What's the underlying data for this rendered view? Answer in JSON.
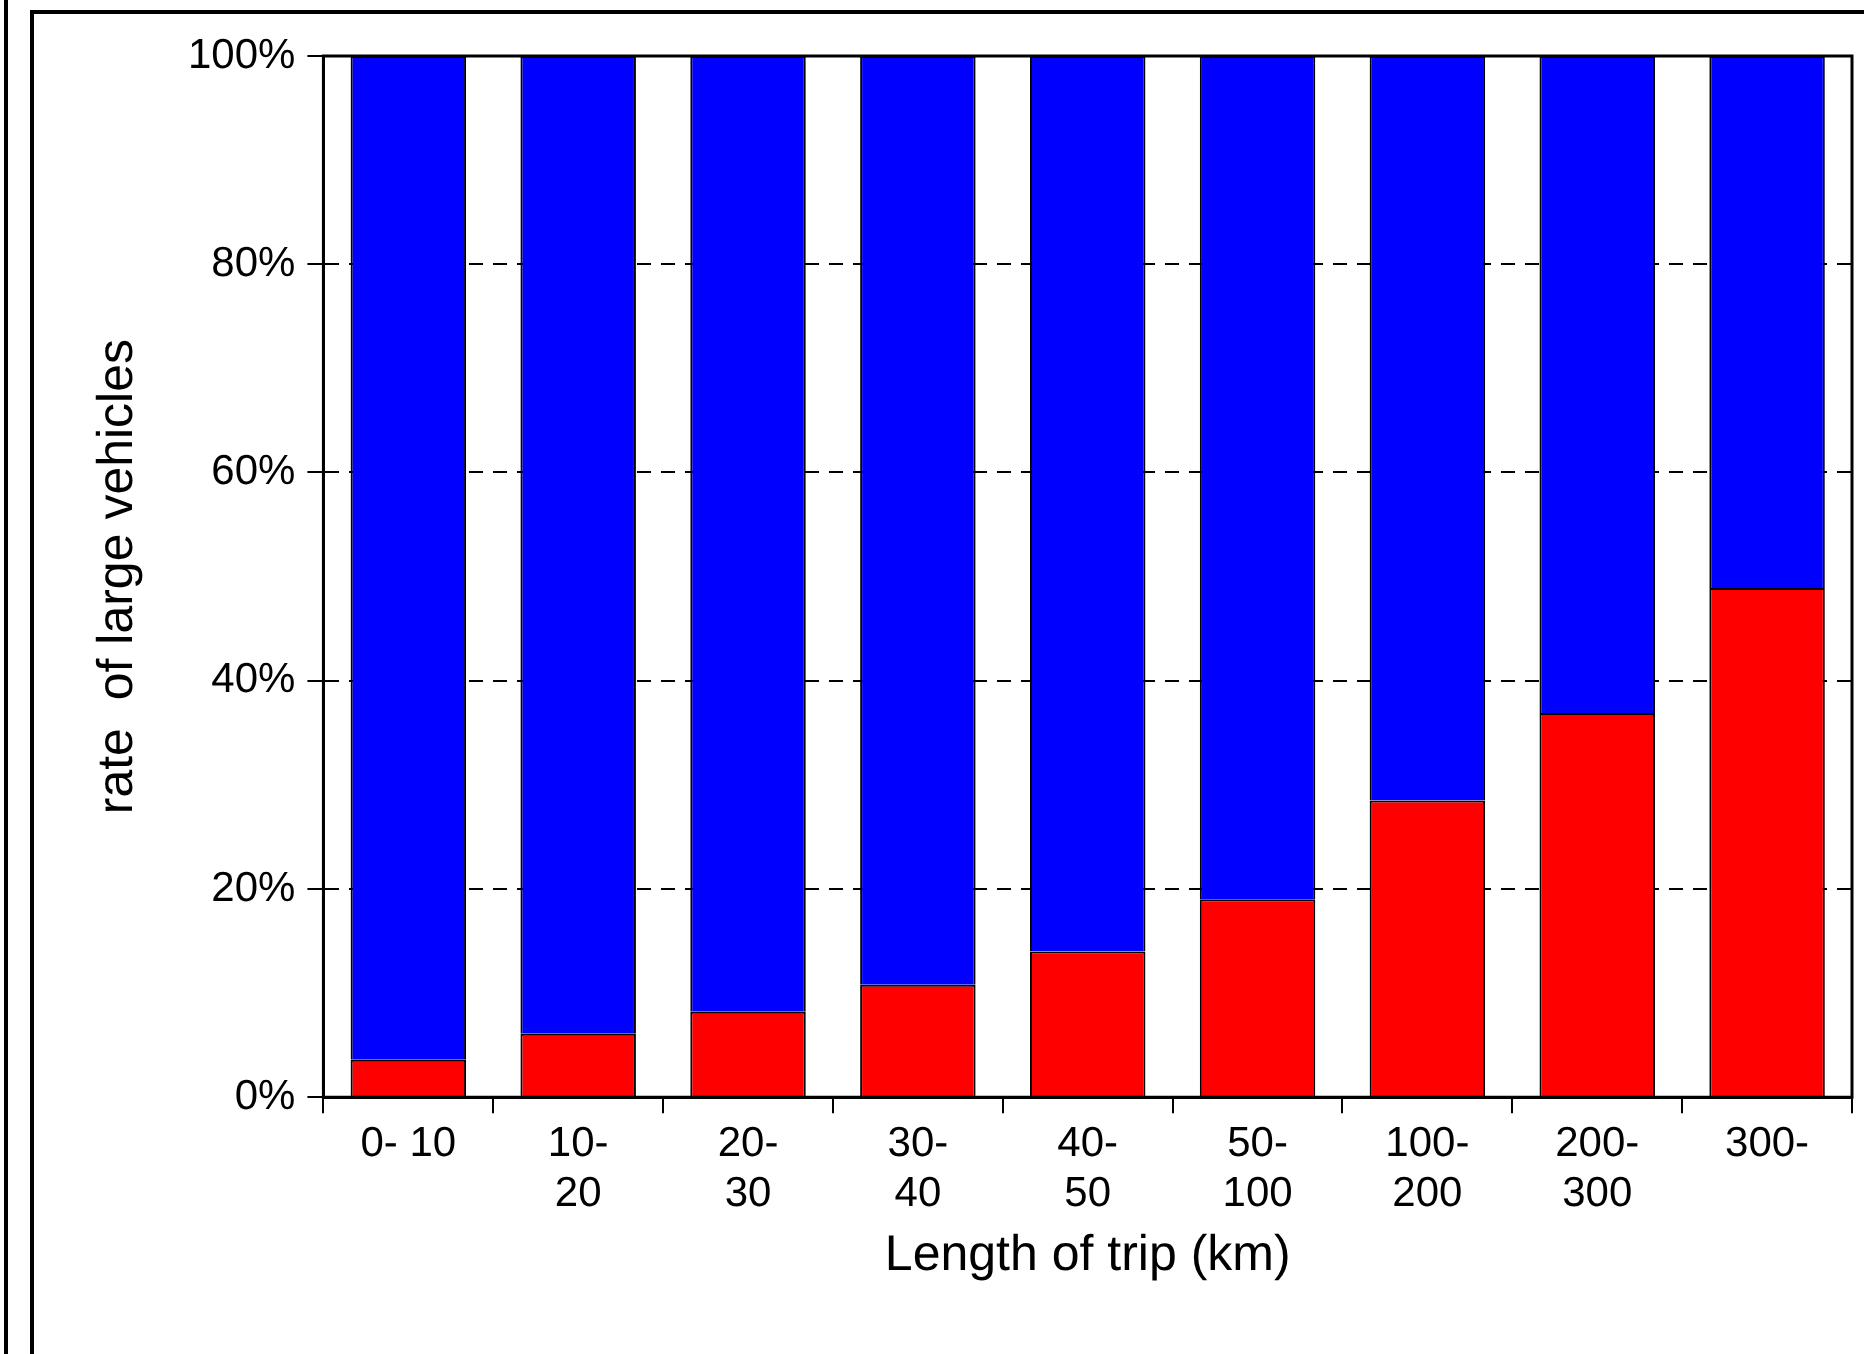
{
  "chart_data": {
    "type": "bar",
    "stacked": true,
    "xlabel": "Length of trip (km)",
    "ylabel": "rate  of large vehicles",
    "categories": [
      "0- 10",
      "10-\n20",
      "20-\n30",
      "30-\n40",
      "40-\n50",
      "50-\n100",
      "100-\n200",
      "200-\n300",
      "300-"
    ],
    "series": [
      {
        "color": "#ff0000",
        "values": [
          3.6,
          6.1,
          8.2,
          10.8,
          14.0,
          19.0,
          28.5,
          36.9,
          48.9
        ]
      },
      {
        "color": "#0000ff",
        "values": [
          96.4,
          93.9,
          91.8,
          89.2,
          86.0,
          81.0,
          71.5,
          63.1,
          51.1
        ]
      }
    ],
    "ylim": [
      0,
      100
    ],
    "yticks": [
      {
        "value": 0,
        "label": "0%"
      },
      {
        "value": 20,
        "label": "20%"
      },
      {
        "value": 40,
        "label": "40%"
      },
      {
        "value": 60,
        "label": "60%"
      },
      {
        "value": 80,
        "label": "80%"
      },
      {
        "value": 100,
        "label": "100%"
      }
    ],
    "grid": "y",
    "legend": false
  }
}
